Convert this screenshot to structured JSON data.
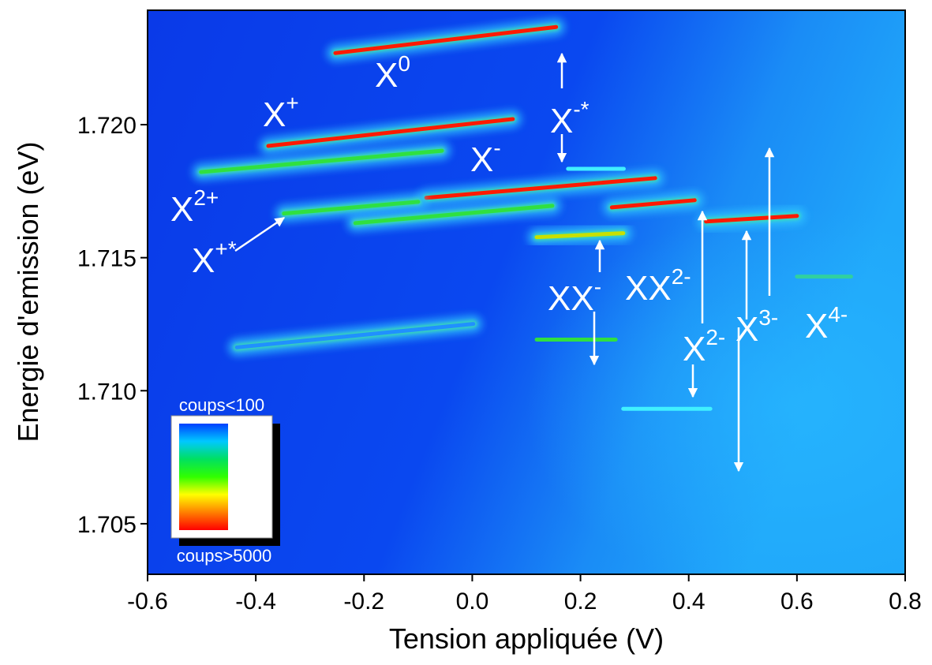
{
  "chart_data": {
    "type": "heatmap",
    "xlabel": "Tension appliquée (V)",
    "ylabel": "Energie d'emission (eV)",
    "xlim": [
      -0.6,
      0.8
    ],
    "ylim": [
      1.7031,
      1.7243
    ],
    "xticks": [
      -0.6,
      -0.4,
      -0.2,
      {
        "value": 0,
        "label": "0.0"
      },
      0.2,
      0.4,
      0.6,
      0.8
    ],
    "yticks": [
      1.705,
      {
        "value": 1.71,
        "label": "1.710"
      },
      1.715,
      {
        "value": 1.72,
        "label": "1.720"
      }
    ],
    "colorbar": {
      "min_label": "coups<100",
      "max_label": "coups>5000",
      "colors": [
        "#0040ff",
        "#00c8ff",
        "#00e060",
        "#30ff00",
        "#ffff00",
        "#ff8000",
        "#ff0000"
      ]
    },
    "streaks": [
      {
        "x": [
          -0.253,
          0.155
        ],
        "y": [
          1.72269,
          1.72367
        ],
        "color": "#ff1a00"
      },
      {
        "x": [
          -0.377,
          0.075
        ],
        "y": [
          1.7192,
          1.72021
        ],
        "color": "#ff1a00"
      },
      {
        "x": [
          -0.501,
          -0.056
        ],
        "y": [
          1.71822,
          1.71902
        ],
        "color": "#30e040"
      },
      {
        "x": [
          -0.085,
          0.338
        ],
        "y": [
          1.71725,
          1.71799
        ],
        "color": "#ff1a00"
      },
      {
        "x": [
          -0.348,
          -0.1
        ],
        "y": [
          1.71666,
          1.7171
        ],
        "color": "#30e040"
      },
      {
        "x": [
          -0.216,
          0.148
        ],
        "y": [
          1.7163,
          1.71695
        ],
        "color": "#30e040"
      },
      {
        "x": [
          0.258,
          0.411
        ],
        "y": [
          1.71689,
          1.71716
        ],
        "color": "#ff1a00"
      },
      {
        "x": [
          0.432,
          0.6
        ],
        "y": [
          1.71636,
          1.71657
        ],
        "color": "#ff1a00"
      },
      {
        "x": [
          0.119,
          0.279
        ],
        "y": [
          1.71577,
          1.71592
        ],
        "color": "#c8e000"
      },
      {
        "x": [
          0.119,
          0.265
        ],
        "y": [
          1.71192,
          1.71192
        ],
        "color": "#30e040"
      },
      {
        "x": [
          0.279,
          0.44
        ],
        "y": [
          1.70932,
          1.70932
        ],
        "color": "#40f0ff"
      },
      {
        "x": [
          0.6,
          0.7
        ],
        "y": [
          1.71429,
          1.71429
        ],
        "color": "#30d0a0"
      },
      {
        "x": [
          0.177,
          0.28
        ],
        "y": [
          1.71834,
          1.71834
        ],
        "color": "#40f0ff"
      },
      {
        "x": [
          -0.435,
          0.002
        ],
        "y": [
          1.71163,
          1.71251
        ],
        "color": "#2090ff"
      }
    ],
    "annotations": [
      {
        "base": "X",
        "sup": "0"
      },
      {
        "base": "X",
        "sup": "+"
      },
      {
        "base": "X",
        "sup": "-*"
      },
      {
        "base": "X",
        "sup": "-"
      },
      {
        "base": "X",
        "sup": "2+"
      },
      {
        "base": "X",
        "sup": "+*"
      },
      {
        "base": "XX",
        "sup": "-"
      },
      {
        "base": "XX",
        "sup": "2-"
      },
      {
        "base": "X",
        "sup": "2-"
      },
      {
        "base": "X",
        "sup": "3-"
      },
      {
        "base": "X",
        "sup": "4-"
      }
    ]
  }
}
